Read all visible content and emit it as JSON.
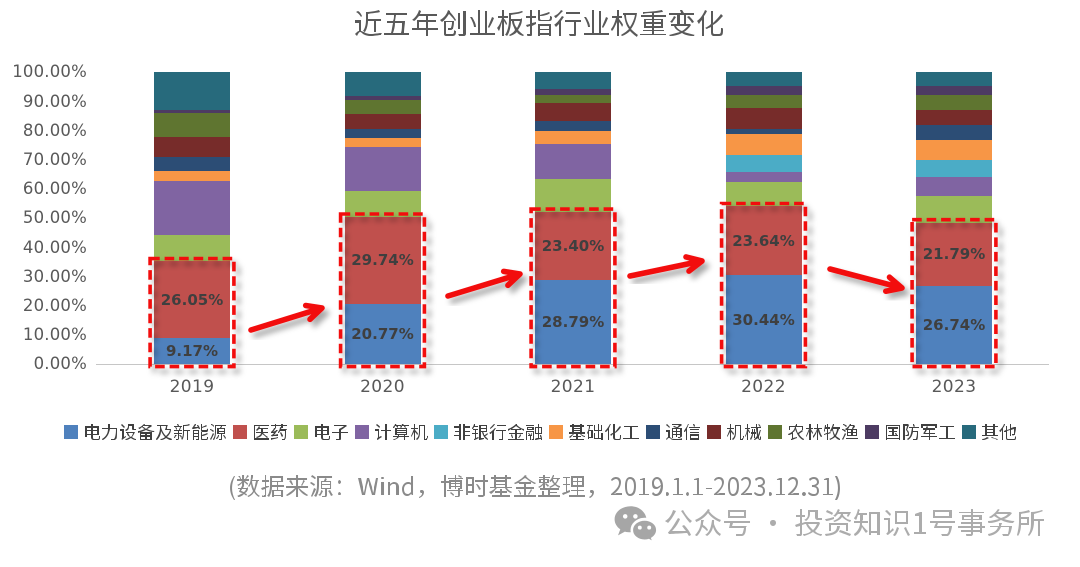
{
  "title": {
    "text": "近五年创业板指行业权重变化",
    "color": "#595959"
  },
  "chart_data": {
    "type": "bar",
    "stacked": true,
    "unit": "percent",
    "title": "近五年创业板指行业权重变化",
    "categories": [
      "2019",
      "2020",
      "2021",
      "2022",
      "2023"
    ],
    "series": [
      {
        "name": "电力设备及新能源",
        "color": "#4F81BD",
        "values": [
          9.17,
          20.77,
          28.79,
          30.44,
          26.74
        ],
        "labels": [
          "9.17%",
          "20.77%",
          "28.79%",
          "30.44%",
          "26.74%"
        ]
      },
      {
        "name": "医药",
        "color": "#C0504D",
        "values": [
          26.05,
          29.74,
          23.4,
          23.64,
          21.79
        ],
        "labels": [
          "26.05%",
          "29.74%",
          "23.40%",
          "23.64%",
          "21.79%"
        ]
      },
      {
        "name": "电子",
        "color": "#9BBB59",
        "values": [
          9.1,
          9.0,
          11.4,
          8.3,
          9.0
        ]
      },
      {
        "name": "计算机",
        "color": "#8064A2",
        "values": [
          18.6,
          14.9,
          12.0,
          3.6,
          6.8
        ]
      },
      {
        "name": "非银行金融",
        "color": "#4BACC6",
        "values": [
          0,
          0,
          0,
          5.8,
          5.8
        ]
      },
      {
        "name": "基础化工",
        "color": "#F79646",
        "values": [
          3.4,
          3.1,
          4.4,
          7.2,
          6.7
        ]
      },
      {
        "name": "通信",
        "color": "#2C4D75",
        "values": [
          4.8,
          3.1,
          3.3,
          1.6,
          5.3
        ]
      },
      {
        "name": "机械",
        "color": "#772C2A",
        "values": [
          6.9,
          5.3,
          6.1,
          7.1,
          5.1
        ]
      },
      {
        "name": "农林牧渔",
        "color": "#5F7530",
        "values": [
          8.2,
          4.6,
          3.0,
          4.6,
          4.9
        ]
      },
      {
        "name": "国防军工",
        "color": "#4D3B62",
        "values": [
          1.0,
          1.5,
          1.9,
          3.1,
          3.3
        ]
      },
      {
        "name": "其他",
        "color": "#276A7C",
        "values": [
          12.78,
          7.99,
          5.71,
          4.62,
          4.57
        ]
      }
    ],
    "ylim": [
      0,
      100
    ],
    "yticks": [
      "0.00%",
      "10.00%",
      "20.00%",
      "30.00%",
      "40.00%",
      "50.00%",
      "60.00%",
      "70.00%",
      "80.00%",
      "90.00%",
      "100.00%"
    ],
    "gridlines": false,
    "legend_position": "bottom",
    "data_labels": {
      "电力设备及新能源": [
        "9.17%",
        "20.77%",
        "28.79%",
        "30.44%",
        "26.74%"
      ],
      "医药": [
        "26.05%",
        "29.74%",
        "23.40%",
        "23.64%",
        "21.79%"
      ]
    },
    "annotations": {
      "highlight_boxes": "red dashed box around 电力设备及新能源+医药 stack of each year",
      "arrows": [
        {
          "from": "2019",
          "to": "2020",
          "direction": "up"
        },
        {
          "from": "2020",
          "to": "2021",
          "direction": "up"
        },
        {
          "from": "2021",
          "to": "2022",
          "direction": "up"
        },
        {
          "from": "2022",
          "to": "2023",
          "direction": "down"
        }
      ],
      "accent_color": "#F20F0F"
    }
  },
  "axis": {
    "tick_label_color": "#595959",
    "line_color": "#C6C6C6"
  },
  "bar_label_color": "#3F3F3F",
  "legend_text_color": "#404040",
  "source_note": {
    "text": "(数据来源：Wind，博时基金整理，2019.1.1-2023.12.31)",
    "color": "#8A8A8A"
  },
  "watermark": {
    "icon": "wechat-icon",
    "text": "公众号 · 投资知识1号事务所",
    "color": "#ACACAC"
  }
}
